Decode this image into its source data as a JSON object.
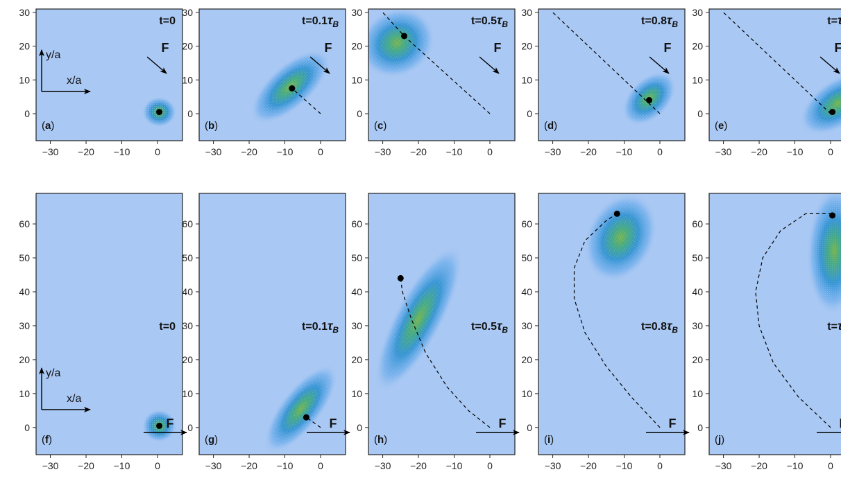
{
  "chart_data": [
    {
      "type": "heatmap",
      "panel_label": "(a)",
      "time_label": "t=0",
      "time_sub": "",
      "force_label": "F",
      "force_dir": "diagonal",
      "xticks": [
        -30,
        -20,
        -10,
        0
      ],
      "yticks": [
        0,
        10,
        20,
        30
      ],
      "xlim": [
        -34,
        7
      ],
      "ylim": [
        -8,
        31
      ],
      "trajectory": [],
      "position": [
        0.5,
        0.5
      ],
      "blob": {
        "cx": 0.5,
        "cy": 0.5,
        "rx": 4.8,
        "ry": 4.5,
        "rot": 0
      },
      "inset_axes": {
        "x": "x/a",
        "y": "y/a"
      }
    },
    {
      "type": "heatmap",
      "panel_label": "(b)",
      "time_label": "t=0.1",
      "time_sub": "τB",
      "force_label": "F",
      "force_dir": "diagonal",
      "xticks": [
        -30,
        -20,
        -10,
        0
      ],
      "yticks": [
        0,
        10,
        20,
        30
      ],
      "xlim": [
        -34,
        7
      ],
      "ylim": [
        -8,
        31
      ],
      "trajectory": [
        [
          0,
          0
        ],
        [
          -8,
          7.5
        ]
      ],
      "position": [
        -8,
        7.5
      ],
      "blob": {
        "cx": -8.5,
        "cy": 8,
        "rx": 14,
        "ry": 6.5,
        "rot": -42
      }
    },
    {
      "type": "heatmap",
      "panel_label": "(c)",
      "time_label": "t=0.5",
      "time_sub": "τB",
      "force_label": "F",
      "force_dir": "diagonal",
      "xticks": [
        -30,
        -20,
        -10,
        0
      ],
      "yticks": [
        0,
        10,
        20,
        30
      ],
      "xlim": [
        -34,
        7
      ],
      "ylim": [
        -8,
        31
      ],
      "trajectory": [
        [
          0,
          0
        ],
        [
          -24,
          23
        ],
        [
          -30,
          30
        ]
      ],
      "position": [
        -24,
        23
      ],
      "blob": {
        "cx": -26,
        "cy": 21,
        "rx": 11,
        "ry": 10,
        "rot": -30
      }
    },
    {
      "type": "heatmap",
      "panel_label": "(d)",
      "time_label": "t=0.8",
      "time_sub": "τB",
      "force_label": "F",
      "force_dir": "diagonal",
      "xticks": [
        -30,
        -20,
        -10,
        0
      ],
      "yticks": [
        0,
        10,
        20,
        30
      ],
      "xlim": [
        -34,
        7
      ],
      "ylim": [
        -8,
        31
      ],
      "trajectory": [
        [
          0,
          0
        ],
        [
          -30,
          30
        ]
      ],
      "position": [
        -3,
        4
      ],
      "blob": {
        "cx": -3,
        "cy": 4.5,
        "rx": 9,
        "ry": 6,
        "rot": -45
      }
    },
    {
      "type": "heatmap",
      "panel_label": "(e)",
      "time_label": "t=",
      "time_sub": "τB",
      "force_label": "F",
      "force_dir": "diagonal",
      "xticks": [
        -30,
        -20,
        -10,
        0
      ],
      "yticks": [
        0,
        10,
        20,
        30
      ],
      "xlim": [
        -34,
        7
      ],
      "ylim": [
        -8,
        31
      ],
      "trajectory": [
        [
          0,
          0
        ],
        [
          -30,
          30
        ]
      ],
      "position": [
        0.5,
        0.5
      ],
      "blob": {
        "cx": 2,
        "cy": 3,
        "rx": 12,
        "ry": 7,
        "rot": -35
      }
    },
    {
      "type": "heatmap",
      "panel_label": "(f)",
      "time_label": "t=0",
      "time_sub": "",
      "force_label": "F",
      "force_dir": "horizontal",
      "xticks": [
        -30,
        -20,
        -10,
        0
      ],
      "yticks": [
        0,
        10,
        20,
        30,
        40,
        50,
        60
      ],
      "xlim": [
        -34,
        7
      ],
      "ylim": [
        -8,
        69
      ],
      "trajectory": [],
      "position": [
        0.5,
        0.5
      ],
      "blob": {
        "cx": 0.5,
        "cy": 0.5,
        "rx": 4.8,
        "ry": 4.8,
        "rot": 0
      },
      "inset_axes": {
        "x": "x/a",
        "y": "y/a"
      }
    },
    {
      "type": "heatmap",
      "panel_label": "(g)",
      "time_label": "t=0.1",
      "time_sub": "τB",
      "force_label": "F",
      "force_dir": "horizontal",
      "xticks": [
        -30,
        -20,
        -10,
        0
      ],
      "yticks": [
        0,
        10,
        20,
        30,
        40,
        50,
        60
      ],
      "xlim": [
        -34,
        7
      ],
      "ylim": [
        -8,
        69
      ],
      "trajectory": [
        [
          0,
          0
        ],
        [
          -4,
          3
        ]
      ],
      "position": [
        -4,
        3
      ],
      "blob": {
        "cx": -5.5,
        "cy": 5.5,
        "rx": 15,
        "ry": 6,
        "rot": -52
      }
    },
    {
      "type": "heatmap",
      "panel_label": "(h)",
      "time_label": "t=0.5",
      "time_sub": "τB",
      "force_label": "F",
      "force_dir": "horizontal",
      "xticks": [
        -30,
        -20,
        -10,
        0
      ],
      "yticks": [
        0,
        10,
        20,
        30,
        40,
        50,
        60
      ],
      "xlim": [
        -34,
        7
      ],
      "ylim": [
        -8,
        69
      ],
      "trajectory": [
        [
          0,
          0
        ],
        [
          -6,
          5
        ],
        [
          -12,
          12
        ],
        [
          -18,
          22
        ],
        [
          -22,
          32
        ],
        [
          -24.5,
          40
        ],
        [
          -25,
          44
        ]
      ],
      "position": [
        -25,
        44
      ],
      "blob": {
        "cx": -20,
        "cy": 32,
        "rx": 23,
        "ry": 7,
        "rot": -62
      }
    },
    {
      "type": "heatmap",
      "panel_label": "(i)",
      "time_label": "t=0.8",
      "time_sub": "τB",
      "force_label": "F",
      "force_dir": "horizontal",
      "xticks": [
        -30,
        -20,
        -10,
        0
      ],
      "yticks": [
        0,
        10,
        20,
        30,
        40,
        50,
        60
      ],
      "xlim": [
        -34,
        7
      ],
      "ylim": [
        -8,
        69
      ],
      "trajectory": [
        [
          0,
          0
        ],
        [
          -8,
          9
        ],
        [
          -15,
          18
        ],
        [
          -21,
          28
        ],
        [
          -24,
          38
        ],
        [
          -24,
          47
        ],
        [
          -21,
          55
        ],
        [
          -15,
          61
        ],
        [
          -12,
          63
        ]
      ],
      "position": [
        -12,
        63
      ],
      "blob": {
        "cx": -11,
        "cy": 56,
        "rx": 13,
        "ry": 10,
        "rot": -65
      }
    },
    {
      "type": "heatmap",
      "panel_label": "(j)",
      "time_label": "t=",
      "time_sub": "τB",
      "force_label": "F",
      "force_dir": "horizontal",
      "xticks": [
        -30,
        -20,
        -10,
        0
      ],
      "yticks": [
        0,
        10,
        20,
        30,
        40,
        50,
        60
      ],
      "xlim": [
        -34,
        7
      ],
      "ylim": [
        -8,
        69
      ],
      "trajectory": [
        [
          0,
          0
        ],
        [
          -9,
          9
        ],
        [
          -16,
          19
        ],
        [
          -20,
          30
        ],
        [
          -21,
          40
        ],
        [
          -19,
          50
        ],
        [
          -14,
          58
        ],
        [
          -7,
          63
        ],
        [
          0.5,
          63
        ]
      ],
      "position": [
        0.5,
        62.5
      ],
      "blob": {
        "cx": 1,
        "cy": 52,
        "rx": 18,
        "ry": 8,
        "rot": -88
      }
    }
  ]
}
